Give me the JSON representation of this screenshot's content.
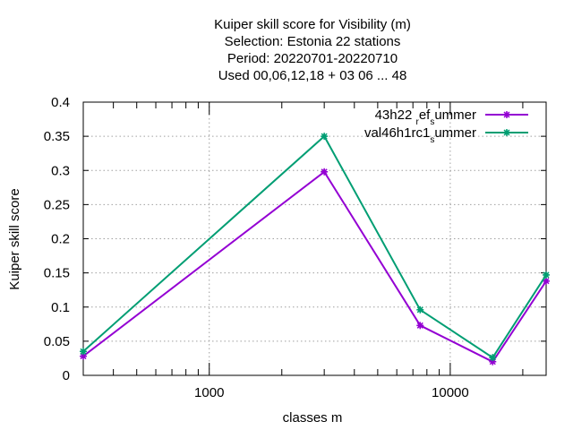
{
  "chart_data": {
    "type": "line",
    "title_lines": [
      "Kuiper skill score  for Visibility (m)",
      "Selection: Estonia      22 stations",
      "Period: 20220701-20220710",
      "Used  00,06,12,18  + 03 06 ... 48"
    ],
    "xlabel": "classes m",
    "ylabel": "Kuiper skill score",
    "x_scale": "log",
    "xlim": [
      300,
      25000
    ],
    "ylim": [
      0,
      0.4
    ],
    "x_ticks": [
      1000,
      10000
    ],
    "x_tick_labels": [
      "1000",
      "10000"
    ],
    "y_ticks": [
      0,
      0.05,
      0.1,
      0.15,
      0.2,
      0.25,
      0.3,
      0.35,
      0.4
    ],
    "y_tick_labels": [
      "0",
      "0.05",
      "0.1",
      "0.15",
      "0.2",
      "0.25",
      "0.3",
      "0.35",
      "0.4"
    ],
    "grid": true,
    "legend_position": "top-right",
    "series": [
      {
        "name": "43h22 ",
        "name_sub1": "r",
        "name_mid": "ef",
        "name_sub2": "s",
        "name_end": "ummer",
        "color": "#9400d3",
        "x": [
          300,
          3000,
          7500,
          15000,
          25000
        ],
        "y": [
          0.028,
          0.298,
          0.073,
          0.02,
          0.138
        ]
      },
      {
        "name": "val46h1rc1",
        "name_sub1": "",
        "name_mid": "",
        "name_sub2": "s",
        "name_end": "ummer",
        "color": "#009e73",
        "x": [
          300,
          3000,
          7500,
          15000,
          25000
        ],
        "y": [
          0.035,
          0.35,
          0.096,
          0.026,
          0.147
        ]
      }
    ]
  }
}
